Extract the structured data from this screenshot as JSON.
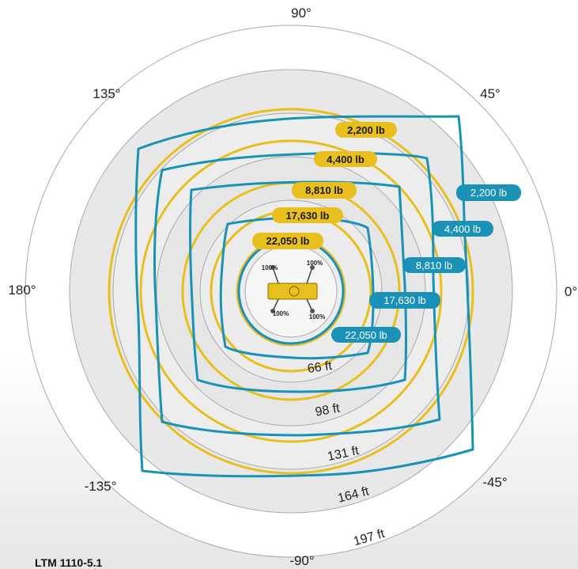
{
  "angles": [
    {
      "label": "90°"
    },
    {
      "label": "45°"
    },
    {
      "label": "0°"
    },
    {
      "label": "-45°"
    },
    {
      "label": "-90°"
    },
    {
      "label": "-135°"
    },
    {
      "label": "180°"
    },
    {
      "label": "135°"
    }
  ],
  "radii": [
    {
      "label": "66 ft"
    },
    {
      "label": "98 ft"
    },
    {
      "label": "131 ft"
    },
    {
      "label": "164 ft"
    },
    {
      "label": "197 ft"
    }
  ],
  "yellow_loads": [
    {
      "label": "2,200 lb"
    },
    {
      "label": "4,400 lb"
    },
    {
      "label": "8,810 lb"
    },
    {
      "label": "17,630 lb"
    },
    {
      "label": "22,050 lb"
    }
  ],
  "blue_loads": [
    {
      "label": "2,200 lb"
    },
    {
      "label": "4,400 lb"
    },
    {
      "label": "8,810 lb"
    },
    {
      "label": "17,630 lb"
    },
    {
      "label": "22,050 lb"
    }
  ],
  "outriggers": [
    {
      "label": "100%"
    },
    {
      "label": "100%"
    },
    {
      "label": "100%"
    },
    {
      "label": "100%"
    }
  ],
  "model": "LTM 1110-5.1",
  "colors": {
    "yellow": "#e9bf1e",
    "blue": "#1a92b8",
    "grid": "#a9a9a9",
    "disk_outer": "#e6e6e6",
    "disk_inner": "#f0f0f0"
  }
}
